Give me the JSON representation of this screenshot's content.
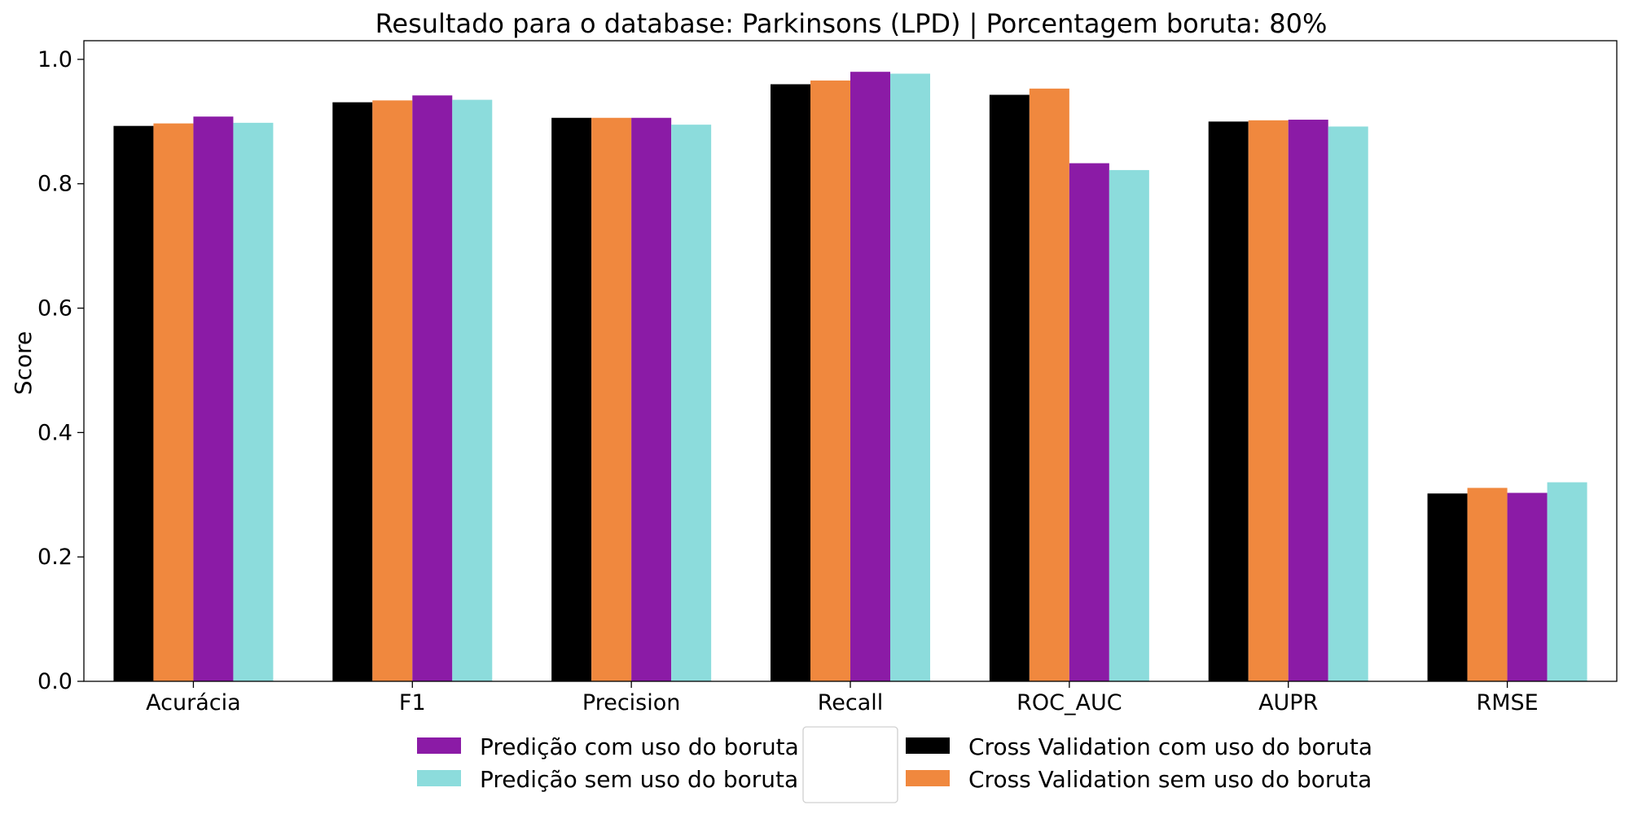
{
  "chart_data": {
    "type": "bar",
    "title": "Resultado para o database: Parkinsons (LPD) | Porcentagem boruta: 80%",
    "xlabel": "",
    "ylabel": "Score",
    "ylim": [
      0,
      1.03
    ],
    "yticks": [
      "0.0",
      "0.2",
      "0.4",
      "0.6",
      "0.8",
      "1.0"
    ],
    "categories": [
      "Acurácia",
      "F1",
      "Precision",
      "Recall",
      "ROC_AUC",
      "AUPR",
      "RMSE"
    ],
    "grid": false,
    "legend_position": "bottom-center",
    "series": [
      {
        "name": "Cross Validation com uso do boruta",
        "color": "#000000",
        "values": [
          0.893,
          0.931,
          0.906,
          0.96,
          0.943,
          0.9,
          0.302
        ]
      },
      {
        "name": "Cross Validation sem uso do boruta",
        "color": "#f0883e",
        "values": [
          0.897,
          0.934,
          0.906,
          0.966,
          0.953,
          0.902,
          0.311
        ]
      },
      {
        "name": "Predição com uso do boruta",
        "color": "#8b1ba6",
        "values": [
          0.908,
          0.942,
          0.906,
          0.98,
          0.833,
          0.903,
          0.303
        ]
      },
      {
        "name": "Predição sem uso do boruta",
        "color": "#8cdcdc",
        "values": [
          0.898,
          0.935,
          0.895,
          0.977,
          0.822,
          0.892,
          0.32
        ]
      }
    ],
    "legend_columns": [
      [
        "Predição com uso do boruta",
        "Predição sem uso do boruta"
      ],
      [
        "Cross Validation com uso do boruta",
        "Cross Validation sem uso do boruta"
      ]
    ]
  }
}
